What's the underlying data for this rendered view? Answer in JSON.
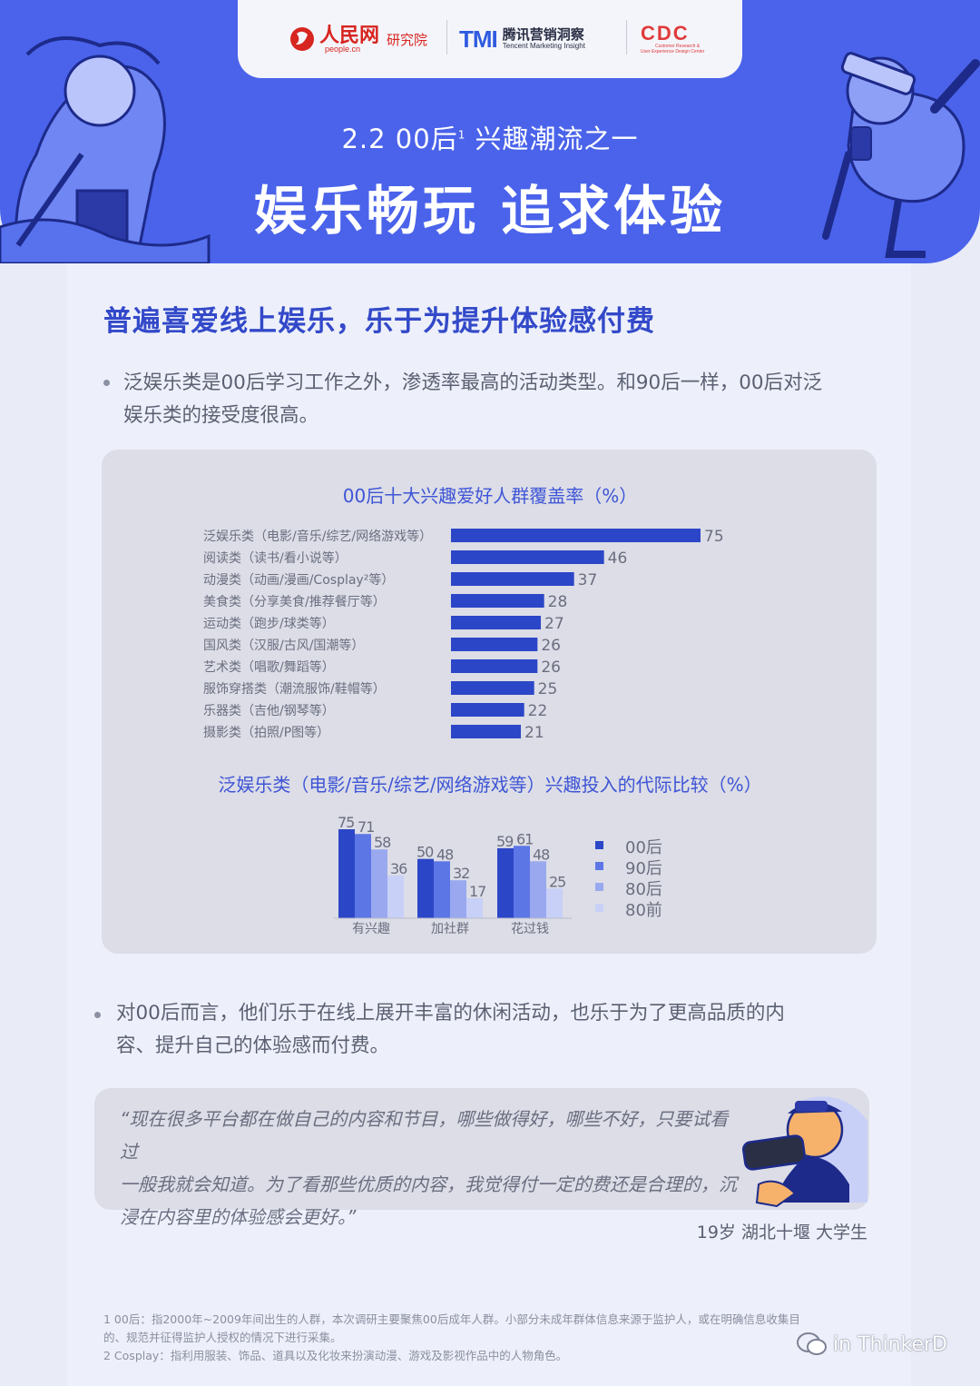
{
  "header": {
    "logos": {
      "people": {
        "name": "人民网",
        "sub": "people.cn",
        "institute": "研究院"
      },
      "tmi": {
        "mark": "TMI",
        "name": "腾讯营销洞察",
        "sub": "Tencent Marketing Insight"
      },
      "cdc": {
        "mark": "CDC",
        "sub1": "Customer Research &",
        "sub2": "User Experience Design Center"
      }
    },
    "subtitle_prefix": "2.2  00后",
    "subtitle_sup": "1",
    "subtitle_suffix": " 兴趣潮流之一",
    "title": "娱乐畅玩 追求体验"
  },
  "section": {
    "title": "普遍喜爱线上娱乐，乐于为提升体验感付费",
    "bullet1": [
      "泛娱乐类是00后学习工作之外，渗透率最高的活动类型。和90后一样，00后对泛",
      "娱乐类的接受度很高。"
    ],
    "bullet2": [
      "对00后而言，他们乐于在线上展开丰富的休闲活动，也乐于为了更高品质的内",
      "容、提升自己的体验感而付费。"
    ]
  },
  "colors": {
    "band": "#4a63ea",
    "bar": "#2c46c8",
    "series": [
      "#2c46c8",
      "#5c76e6",
      "#99a8ef",
      "#c9d0f7"
    ]
  },
  "chart_data": [
    {
      "type": "bar",
      "orientation": "horizontal",
      "title": "00后十大兴趣爱好人群覆盖率（%）",
      "categories": [
        "泛娱乐类（电影/音乐/综艺/网络游戏等）",
        "阅读类（读书/看小说等）",
        "动漫类（动画/漫画/Cosplay²等）",
        "美食类（分享美食/推荐餐厅等）",
        "运动类（跑步/球类等）",
        "国风类（汉服/古风/国潮等）",
        "艺术类（唱歌/舞蹈等）",
        "服饰穿搭类（潮流服饰/鞋帽等）",
        "乐器类（吉他/钢琴等）",
        "摄影类（拍照/P图等）"
      ],
      "values": [
        75,
        46,
        37,
        28,
        27,
        26,
        26,
        25,
        22,
        21
      ],
      "xlim": [
        0,
        100
      ],
      "grid": false
    },
    {
      "type": "bar",
      "title": "泛娱乐类（电影/音乐/综艺/网络游戏等）兴趣投入的代际比较（%）",
      "categories": [
        "有兴趣",
        "加社群",
        "花过钱"
      ],
      "series": [
        {
          "name": "00后",
          "values": [
            75,
            50,
            59
          ]
        },
        {
          "name": "90后",
          "values": [
            71,
            48,
            61
          ]
        },
        {
          "name": "80后",
          "values": [
            58,
            32,
            48
          ]
        },
        {
          "name": "80前",
          "values": [
            36,
            17,
            25
          ]
        }
      ],
      "ylim": [
        0,
        80
      ],
      "legend": "right",
      "grid": false
    }
  ],
  "quote": {
    "lines": [
      "“现在很多平台都在做自己的内容和节目，哪些做得好，哪些不好，只要试看过",
      "一般我就会知道。为了看那些优质的内容，我觉得付一定的费还是合理的，沉",
      "浸在内容里的体验感会更好。”"
    ],
    "attribution": "19岁 湖北十堰 大学生"
  },
  "footnotes": [
    "1 00后：指2000年~2009年间出生的人群，本次调研主要聚焦00后成年人群。小部分未成年群体信息来源于监护人，或在明确信息收集目",
    "的、规范并征得监护人授权的情况下进行采集。",
    "2 Cosplay：指利用服装、饰品、道具以及化妆来扮演动漫、游戏及影视作品中的人物角色。"
  ],
  "watermark": "in ThinkerD"
}
